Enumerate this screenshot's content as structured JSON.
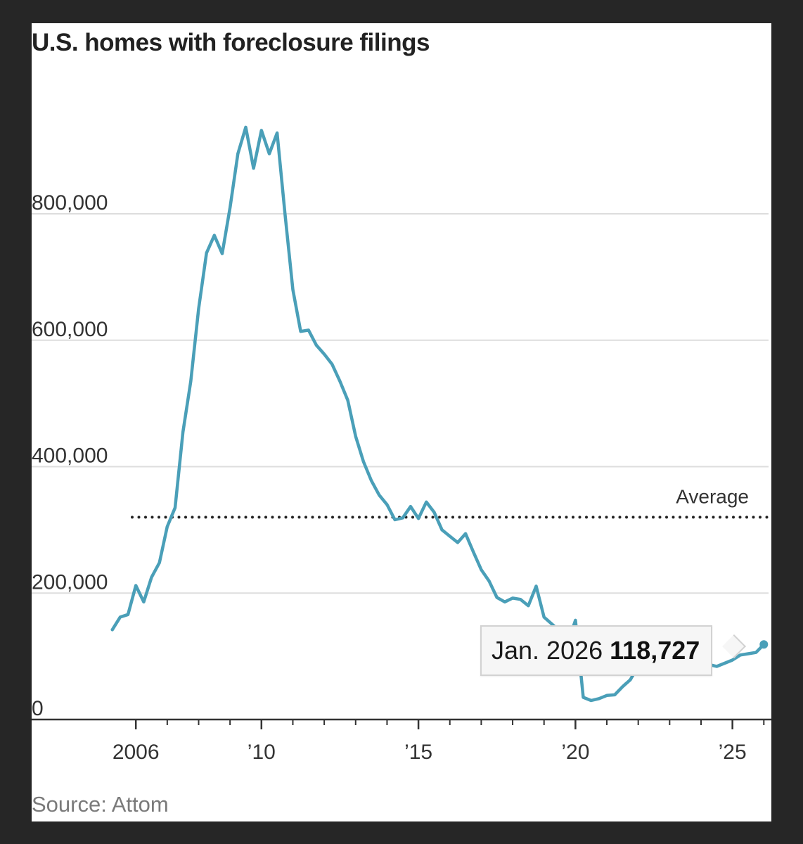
{
  "title": "U.S. homes with foreclosure filings",
  "source": "Source: Attom",
  "colors": {
    "line": "#4a9fb8",
    "average": "#222222",
    "grid": "#dddddd",
    "axis": "#333333"
  },
  "tooltip": {
    "date": "Jan. 2026",
    "value": "118,727"
  },
  "chart_data": {
    "type": "line",
    "title": "U.S. homes with foreclosure filings",
    "xlabel": "",
    "ylabel": "",
    "xlim": [
      2005.1,
      2026.15
    ],
    "ylim": [
      0,
      940000
    ],
    "y_ticks": [
      {
        "value": 0,
        "label": "0"
      },
      {
        "value": 200000,
        "label": "200,000"
      },
      {
        "value": 400000,
        "label": "400,000"
      },
      {
        "value": 600000,
        "label": "600,000"
      },
      {
        "value": 800000,
        "label": "800,000"
      }
    ],
    "x_major_ticks": [
      {
        "value": 2006,
        "label": "2006"
      },
      {
        "value": 2010,
        "label": "’10"
      },
      {
        "value": 2015,
        "label": "’15"
      },
      {
        "value": 2020,
        "label": "’20"
      },
      {
        "value": 2025,
        "label": "’25"
      }
    ],
    "x_minor_ticks": [
      2007,
      2008,
      2009,
      2011,
      2012,
      2013,
      2014,
      2016,
      2017,
      2018,
      2019,
      2021,
      2022,
      2023,
      2024,
      2026
    ],
    "grid": true,
    "average": {
      "label": "Average",
      "value": 320000
    },
    "series": [
      {
        "x": [
          2005.25,
          2005.5,
          2005.75,
          2006.0,
          2006.25,
          2006.5,
          2006.75,
          2007.0,
          2007.25,
          2007.5,
          2007.75,
          2008.0,
          2008.25,
          2008.5,
          2008.75,
          2009.0,
          2009.25,
          2009.5,
          2009.75,
          2010.0,
          2010.25,
          2010.5,
          2010.75,
          2011.0,
          2011.25,
          2011.5,
          2011.75,
          2012.0,
          2012.25,
          2012.5,
          2012.75,
          2013.0,
          2013.25,
          2013.5,
          2013.75,
          2014.0,
          2014.25,
          2014.5,
          2014.75,
          2015.0,
          2015.25,
          2015.5,
          2015.75,
          2016.0,
          2016.25,
          2016.5,
          2016.75,
          2017.0,
          2017.25,
          2017.5,
          2017.75,
          2018.0,
          2018.25,
          2018.5,
          2018.75,
          2019.0,
          2019.25,
          2019.5,
          2019.75,
          2020.0,
          2020.25,
          2020.5,
          2020.75,
          2021.0,
          2021.25,
          2021.5,
          2021.75,
          2022.0,
          2022.25,
          2022.5,
          2022.75,
          2023.0,
          2023.25,
          2023.5,
          2023.75,
          2024.0,
          2024.25,
          2024.5,
          2024.75,
          2025.0,
          2025.25,
          2025.5,
          2025.75,
          2026.0
        ],
        "y": [
          142000,
          162000,
          166000,
          212000,
          186000,
          225000,
          248000,
          305000,
          335000,
          455000,
          535000,
          650000,
          738000,
          766000,
          737000,
          810000,
          895000,
          937000,
          872000,
          932000,
          895000,
          928000,
          800000,
          680000,
          614000,
          616000,
          592000,
          578000,
          562000,
          535000,
          505000,
          448000,
          408000,
          378000,
          355000,
          340000,
          316000,
          319000,
          337000,
          318000,
          344000,
          328000,
          300000,
          290000,
          280000,
          294000,
          265000,
          237000,
          219000,
          193000,
          186000,
          192000,
          190000,
          180000,
          211000,
          162000,
          151000,
          140000,
          120000,
          157000,
          35000,
          30000,
          33000,
          38000,
          39000,
          52000,
          63000,
          85000,
          99000,
          104000,
          101000,
          92000,
          93000,
          96000,
          92000,
          89000,
          87000,
          84000,
          89000,
          94000,
          102000,
          104000,
          106000,
          118727
        ]
      }
    ]
  }
}
